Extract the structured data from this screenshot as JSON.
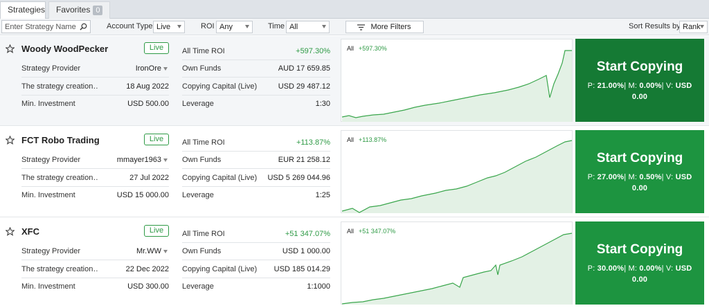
{
  "tabs": [
    {
      "label": "Strategies"
    },
    {
      "label": "Favorites",
      "count": "0"
    }
  ],
  "filters": {
    "search_placeholder": "Enter Strategy Name",
    "account_type_label": "Account Type",
    "account_type_value": "Live",
    "roi_label": "ROI",
    "roi_value": "Any",
    "time_label": "Time",
    "time_value": "All",
    "more_filters_label": "More Filters",
    "sort_label": "Sort Results by",
    "sort_value": "Rank"
  },
  "strategies": [
    {
      "name": "Woody WoodPecker",
      "badge": "Live",
      "provider_label": "Strategy Provider",
      "provider": "IronOre",
      "creation_label": "The strategy creation…",
      "creation_date": "18 Aug 2022",
      "min_inv_label": "Min. Investment",
      "min_inv": "USD 500.00",
      "roi_label": "All Time ROI",
      "roi": "+597.30%",
      "own_funds_label": "Own Funds",
      "own_funds": "AUD 17 659.85",
      "capital_label": "Copying Capital (Live)",
      "capital": "USD 29 487.12",
      "leverage_label": "Leverage",
      "leverage": "1:30",
      "chart_label": "All",
      "chart_roi": "+597.30%",
      "copy_title": "Start Copying",
      "copy_p_label": "P:",
      "copy_p": "21.00%",
      "copy_m_label": "| M:",
      "copy_m": "0.00%",
      "copy_v_label": "| V:",
      "copy_v": "0.00",
      "copy_v_prefix": "USD",
      "copy_color": "#157a34"
    },
    {
      "name": "FCT Robo Trading",
      "badge": "Live",
      "provider_label": "Strategy Provider",
      "provider": "mmayer1963",
      "creation_label": "The strategy creation…",
      "creation_date": "27 Jul 2022",
      "min_inv_label": "Min. Investment",
      "min_inv": "USD 15 000.00",
      "roi_label": "All Time ROI",
      "roi": "+113.87%",
      "own_funds_label": "Own Funds",
      "own_funds": "EUR 21 258.12",
      "capital_label": "Copying Capital (Live)",
      "capital": "USD 5 269 044.96",
      "leverage_label": "Leverage",
      "leverage": "1:25",
      "chart_label": "All",
      "chart_roi": "+113.87%",
      "copy_title": "Start Copying",
      "copy_p_label": "P:",
      "copy_p": "27.00%",
      "copy_m_label": "| M:",
      "copy_m": "0.50%",
      "copy_v_label": "| V:",
      "copy_v": "0.00",
      "copy_v_prefix": "USD",
      "copy_color": "#1d9440"
    },
    {
      "name": "XFC",
      "badge": "Live",
      "provider_label": "Strategy Provider",
      "provider": "Mr.WW",
      "creation_label": "The strategy creation…",
      "creation_date": "22 Dec 2022",
      "min_inv_label": "Min. Investment",
      "min_inv": "USD 300.00",
      "roi_label": "All Time ROI",
      "roi": "+51 347.07%",
      "own_funds_label": "Own Funds",
      "own_funds": "USD 1 000.00",
      "capital_label": "Copying Capital (Live)",
      "capital": "USD 185 014.29",
      "leverage_label": "Leverage",
      "leverage": "1:1000",
      "chart_label": "All",
      "chart_roi": "+51 347.07%",
      "copy_title": "Start Copying",
      "copy_p_label": "P:",
      "copy_p": "30.00%",
      "copy_m_label": "| M:",
      "copy_m": "0.00%",
      "copy_v_label": "| V:",
      "copy_v": "0.00",
      "copy_v_prefix": "USD",
      "copy_color": "#1d9440"
    }
  ],
  "colors": {
    "accent_green": "#2e9a45",
    "chart_line": "#3aa64c",
    "chart_fill": "#e3f1e5"
  },
  "icons": {
    "search": "magnifier-icon",
    "star": "star-outline-icon",
    "filter": "filter-lines-icon",
    "caret": "chevron-down-icon"
  }
}
